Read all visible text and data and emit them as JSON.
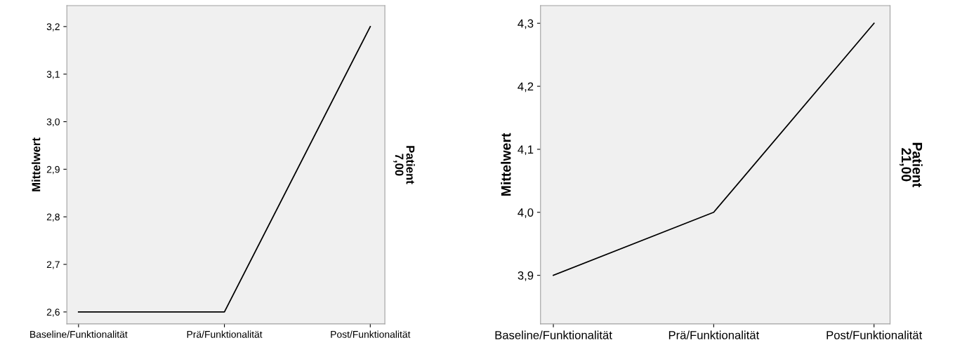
{
  "chart_data": [
    {
      "type": "line",
      "ylabel": "Mittelwert",
      "categories": [
        "Baseline/Funktionalität",
        "Prä/Funktionalität",
        "Post/Funktionalität"
      ],
      "series": [
        {
          "color": "#000000",
          "values": [
            2.6,
            2.6,
            3.2
          ]
        }
      ],
      "ylim": [
        2.575,
        3.244
      ],
      "yticks": [
        {
          "value": 2.6,
          "label": "2,6"
        },
        {
          "value": 2.7,
          "label": "2,7"
        },
        {
          "value": 2.8,
          "label": "2,8"
        },
        {
          "value": 2.9,
          "label": "2,9"
        },
        {
          "value": 3.0,
          "label": "3,0"
        },
        {
          "value": 3.1,
          "label": "3,1"
        },
        {
          "value": 3.2,
          "label": "3,2"
        }
      ],
      "annotations": [
        "Patient",
        "7,00"
      ],
      "grid": false,
      "legend": false,
      "marker": "none",
      "line_style": "solid"
    },
    {
      "type": "line",
      "ylabel": "Mittelwert",
      "categories": [
        "Baseline/Funktionalität",
        "Prä/Funktionalität",
        "Post/Funktionalität"
      ],
      "series": [
        {
          "color": "#000000",
          "values": [
            3.9,
            4.0,
            4.3
          ]
        }
      ],
      "ylim": [
        3.823,
        4.328
      ],
      "yticks": [
        {
          "value": 3.9,
          "label": "3,9"
        },
        {
          "value": 4.0,
          "label": "4,0"
        },
        {
          "value": 4.1,
          "label": "4,1"
        },
        {
          "value": 4.2,
          "label": "4,2"
        },
        {
          "value": 4.3,
          "label": "4,3"
        }
      ],
      "annotations": [
        "Patient",
        "21,00"
      ],
      "grid": false,
      "legend": false,
      "marker": "none",
      "line_style": "solid"
    }
  ]
}
